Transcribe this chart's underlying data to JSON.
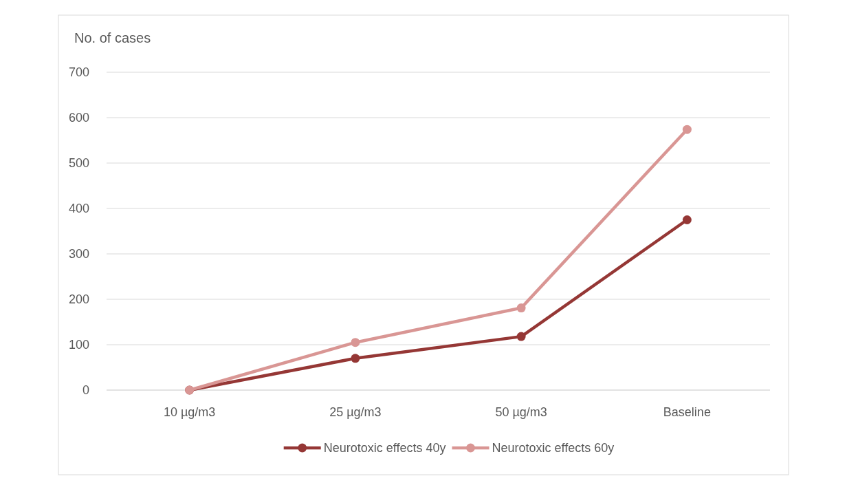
{
  "chart_data": {
    "type": "line",
    "ylabel": "No. of cases",
    "categories": [
      "10 µg/m3",
      "25 µg/m3",
      "50 µg/m3",
      "Baseline"
    ],
    "series": [
      {
        "name": "Neurotoxic effects 40y",
        "color": "#953735",
        "values": [
          0,
          70,
          118,
          375
        ]
      },
      {
        "name": "Neurotoxic effects 60y",
        "color": "#d99694",
        "values": [
          0,
          105,
          181,
          574
        ]
      }
    ],
    "ylim": [
      0,
      700
    ],
    "yticks": [
      0,
      100,
      200,
      300,
      400,
      500,
      600,
      700
    ],
    "grid": "y",
    "legend": "bottom",
    "marker": "circle",
    "line_style": "solid"
  }
}
